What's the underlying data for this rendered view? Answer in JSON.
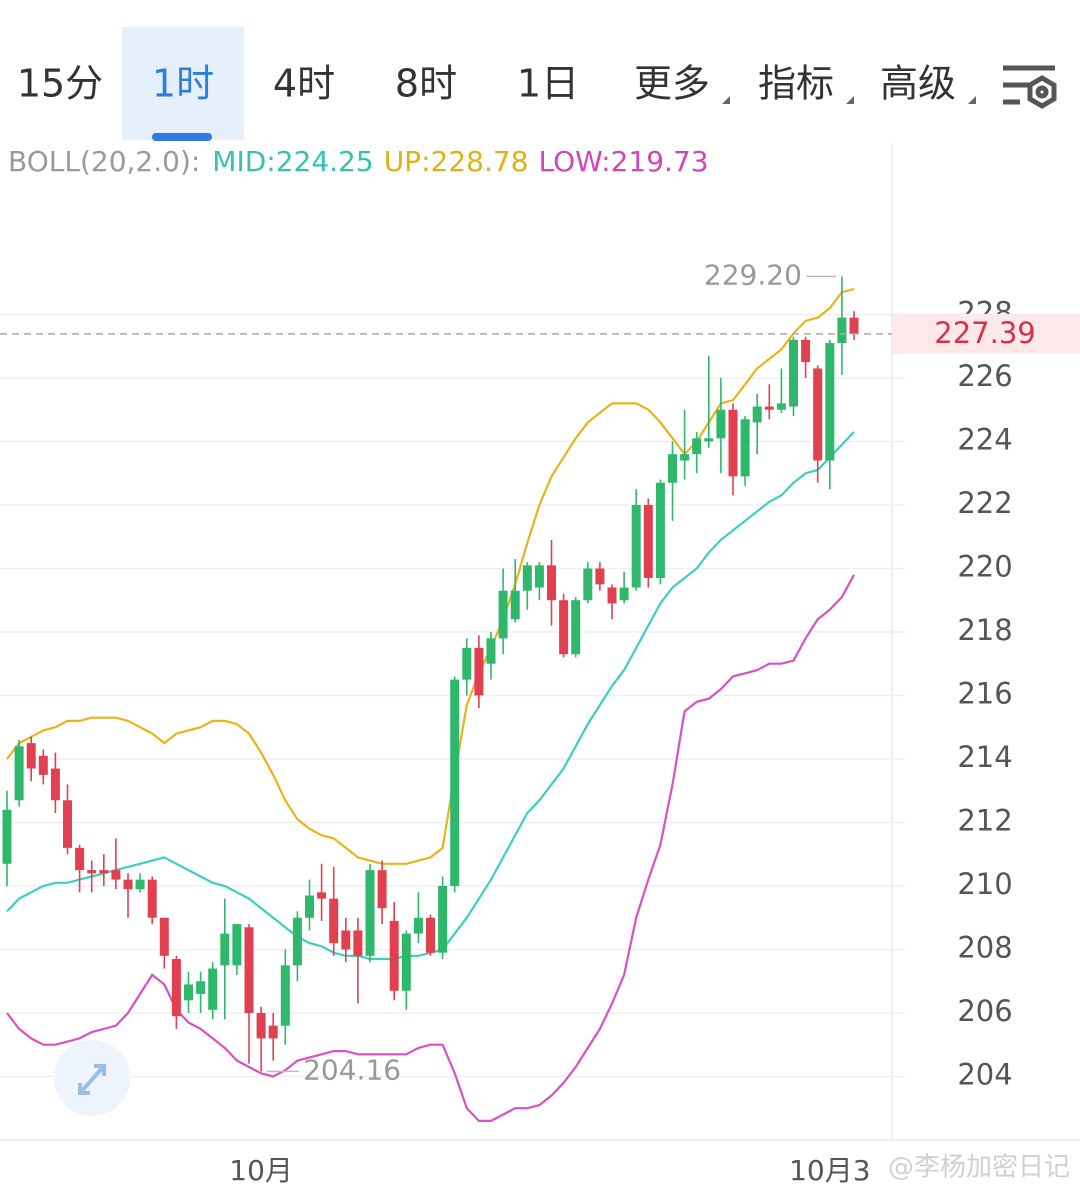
{
  "toolbar": {
    "tabs": [
      "15分",
      "1时",
      "4时",
      "8时",
      "1日",
      "更多",
      "指标",
      "高级"
    ],
    "selected": 1
  },
  "indicator": {
    "name": "BOLL(20,2.0):",
    "mid": "MID:224.25",
    "up": "UP:228.78",
    "low": "LOW:219.73"
  },
  "watermark": "@李杨加密日记",
  "chart_data": {
    "type": "candlestick",
    "categories": [
      null,
      null,
      null,
      null,
      null,
      null,
      null,
      null,
      null,
      null,
      null,
      null,
      null,
      null,
      null,
      null,
      null,
      null,
      null,
      null,
      null,
      "10月",
      null,
      null,
      null,
      null,
      null,
      null,
      null,
      null,
      null,
      null,
      null,
      null,
      null,
      null,
      null,
      null,
      null,
      null,
      null,
      null,
      null,
      null,
      null,
      null,
      null,
      null,
      null,
      null,
      null,
      null,
      null,
      null,
      null,
      null,
      null,
      null,
      null,
      null,
      null,
      null,
      null,
      null,
      null,
      null,
      null,
      null,
      "10月3",
      null,
      null
    ],
    "open": [
      210.7,
      212.7,
      214.5,
      214.1,
      213.7,
      212.7,
      211.2,
      210.5,
      210.5,
      210.5,
      210.2,
      209.9,
      210.2,
      209.0,
      207.7,
      206.4,
      206.6,
      206.1,
      207.5,
      207.5,
      208.7,
      206.0,
      205.6,
      205.6,
      207.5,
      209.0,
      209.8,
      209.6,
      208.6,
      208.6,
      207.8,
      210.5,
      208.9,
      206.7,
      208.5,
      209.0,
      207.9,
      210.0,
      216.5,
      217.5,
      217.0,
      217.8,
      218.4,
      219.3,
      219.4,
      220.1,
      219.0,
      217.3,
      219.0,
      220.0,
      219.4,
      219.0,
      219.4,
      222.0,
      219.7,
      222.7,
      223.4,
      223.6,
      224.0,
      224.1,
      225.0,
      222.9,
      224.6,
      225.1,
      225.0,
      225.1,
      227.2,
      226.3,
      223.4,
      227.1,
      227.9
    ],
    "high": [
      213.0,
      214.6,
      214.7,
      214.3,
      214.2,
      213.2,
      211.3,
      210.8,
      211.0,
      211.5,
      210.4,
      210.4,
      210.3,
      209.0,
      207.8,
      207.3,
      207.3,
      207.6,
      209.6,
      208.8,
      208.8,
      206.2,
      206.0,
      208.0,
      209.2,
      210.2,
      210.7,
      210.6,
      209.0,
      209.0,
      210.7,
      210.8,
      209.5,
      208.6,
      209.8,
      209.1,
      210.3,
      216.6,
      217.8,
      217.9,
      218.0,
      220.0,
      220.3,
      220.2,
      220.2,
      220.9,
      219.2,
      219.1,
      220.2,
      220.2,
      219.5,
      219.9,
      222.5,
      222.2,
      222.8,
      224.0,
      225.0,
      224.3,
      226.7,
      226.0,
      225.2,
      224.8,
      225.5,
      225.8,
      226.3,
      227.3,
      227.3,
      226.4,
      227.2,
      229.2,
      228.1
    ],
    "low": [
      210.0,
      212.5,
      213.3,
      213.2,
      212.3,
      211.0,
      209.8,
      209.8,
      210.0,
      209.9,
      209.0,
      209.8,
      208.8,
      207.4,
      205.5,
      206.0,
      206.0,
      205.8,
      205.8,
      207.2,
      204.4,
      204.16,
      204.5,
      205.0,
      207.0,
      208.6,
      208.9,
      207.8,
      207.6,
      206.3,
      207.6,
      208.8,
      206.4,
      206.1,
      208.2,
      207.8,
      207.7,
      209.8,
      216.0,
      215.6,
      216.5,
      217.3,
      218.3,
      218.7,
      219.0,
      218.2,
      217.2,
      217.2,
      218.9,
      219.3,
      218.4,
      218.9,
      219.3,
      219.4,
      219.5,
      221.5,
      222.8,
      223.0,
      223.8,
      223.0,
      222.3,
      222.6,
      223.6,
      224.7,
      224.9,
      224.8,
      226.0,
      222.7,
      222.5,
      226.1,
      227.2
    ],
    "close": [
      212.4,
      214.4,
      213.7,
      213.5,
      212.7,
      211.2,
      210.5,
      210.4,
      210.4,
      210.2,
      209.9,
      210.2,
      209.0,
      207.8,
      205.9,
      206.9,
      207.0,
      207.4,
      208.5,
      208.8,
      206.0,
      205.2,
      205.2,
      207.5,
      209.0,
      209.7,
      209.6,
      208.2,
      208.0,
      207.8,
      210.5,
      209.3,
      206.7,
      208.5,
      209.0,
      207.9,
      210.0,
      216.5,
      217.5,
      216.0,
      217.8,
      219.3,
      219.3,
      220.1,
      220.1,
      219.0,
      217.3,
      219.0,
      220.0,
      219.5,
      218.9,
      219.4,
      222.0,
      219.7,
      222.7,
      223.6,
      223.6,
      224.1,
      224.1,
      225.0,
      222.9,
      224.7,
      225.1,
      225.0,
      225.2,
      227.2,
      226.5,
      223.4,
      227.1,
      227.9,
      227.39
    ],
    "up_color": "#2fb86b",
    "down_color": "#e0404f",
    "series": [
      {
        "color": "#e8b41a",
        "values": [
          214.0,
          214.5,
          214.7,
          214.9,
          215.0,
          215.2,
          215.2,
          215.3,
          215.3,
          215.3,
          215.2,
          215.0,
          214.8,
          214.5,
          214.8,
          214.9,
          215.0,
          215.2,
          215.2,
          215.1,
          214.8,
          214.2,
          213.5,
          212.7,
          212.1,
          211.8,
          211.6,
          211.5,
          211.2,
          210.9,
          210.8,
          210.7,
          210.7,
          210.7,
          210.8,
          210.9,
          211.2,
          213.5,
          215.7,
          216.7,
          217.5,
          218.4,
          219.5,
          220.8,
          222.0,
          222.9,
          223.5,
          224.1,
          224.6,
          224.9,
          225.2,
          225.2,
          225.2,
          225.0,
          224.6,
          224.1,
          223.6,
          224.0,
          224.6,
          225.2,
          225.3,
          225.8,
          226.3,
          226.6,
          226.9,
          227.4,
          227.8,
          227.9,
          228.2,
          228.7,
          228.8
        ]
      },
      {
        "color": "#3ccfbf",
        "values": [
          209.2,
          209.6,
          209.8,
          210.0,
          210.1,
          210.1,
          210.2,
          210.3,
          210.4,
          210.5,
          210.6,
          210.7,
          210.8,
          210.9,
          210.7,
          210.5,
          210.3,
          210.1,
          210.0,
          209.8,
          209.6,
          209.3,
          209.0,
          208.7,
          208.4,
          208.2,
          208.1,
          207.9,
          207.8,
          207.8,
          207.7,
          207.7,
          207.7,
          207.8,
          207.8,
          207.9,
          208.0,
          208.5,
          209.0,
          209.6,
          210.2,
          210.9,
          211.6,
          212.3,
          212.7,
          213.2,
          213.7,
          214.4,
          215.1,
          215.7,
          216.3,
          216.8,
          217.5,
          218.2,
          218.9,
          219.4,
          219.7,
          220.0,
          220.5,
          220.9,
          221.2,
          221.5,
          221.8,
          222.1,
          222.3,
          222.7,
          223.0,
          223.1,
          223.5,
          223.9,
          224.3
        ]
      },
      {
        "color": "#d850c2",
        "values": [
          206.0,
          205.5,
          205.2,
          205.0,
          205.0,
          205.1,
          205.2,
          205.4,
          205.5,
          205.6,
          206.0,
          206.6,
          207.2,
          206.9,
          206.1,
          205.7,
          205.5,
          205.2,
          204.9,
          204.5,
          204.3,
          204.1,
          204.0,
          204.2,
          204.5,
          204.6,
          204.7,
          204.8,
          204.8,
          204.7,
          204.7,
          204.7,
          204.7,
          204.7,
          204.9,
          205.0,
          205.0,
          204.1,
          203.0,
          202.6,
          202.6,
          202.8,
          203.0,
          203.0,
          203.1,
          203.4,
          203.8,
          204.3,
          204.9,
          205.5,
          206.3,
          207.2,
          209.0,
          210.2,
          211.3,
          213.2,
          215.5,
          215.8,
          215.9,
          216.2,
          216.6,
          216.7,
          216.8,
          217.0,
          217.0,
          217.1,
          217.8,
          218.4,
          218.7,
          219.1,
          219.8
        ]
      }
    ],
    "last_price": 227.39,
    "annotations": [
      {
        "value": 229.2,
        "label": "229.20"
      },
      {
        "value": 204.16,
        "label": "204.16"
      }
    ],
    "ylim": [
      202.0,
      233.4
    ],
    "yticks": [
      204,
      206,
      208,
      210,
      212,
      214,
      216,
      218,
      220,
      222,
      224,
      226,
      228
    ],
    "grid": true
  }
}
